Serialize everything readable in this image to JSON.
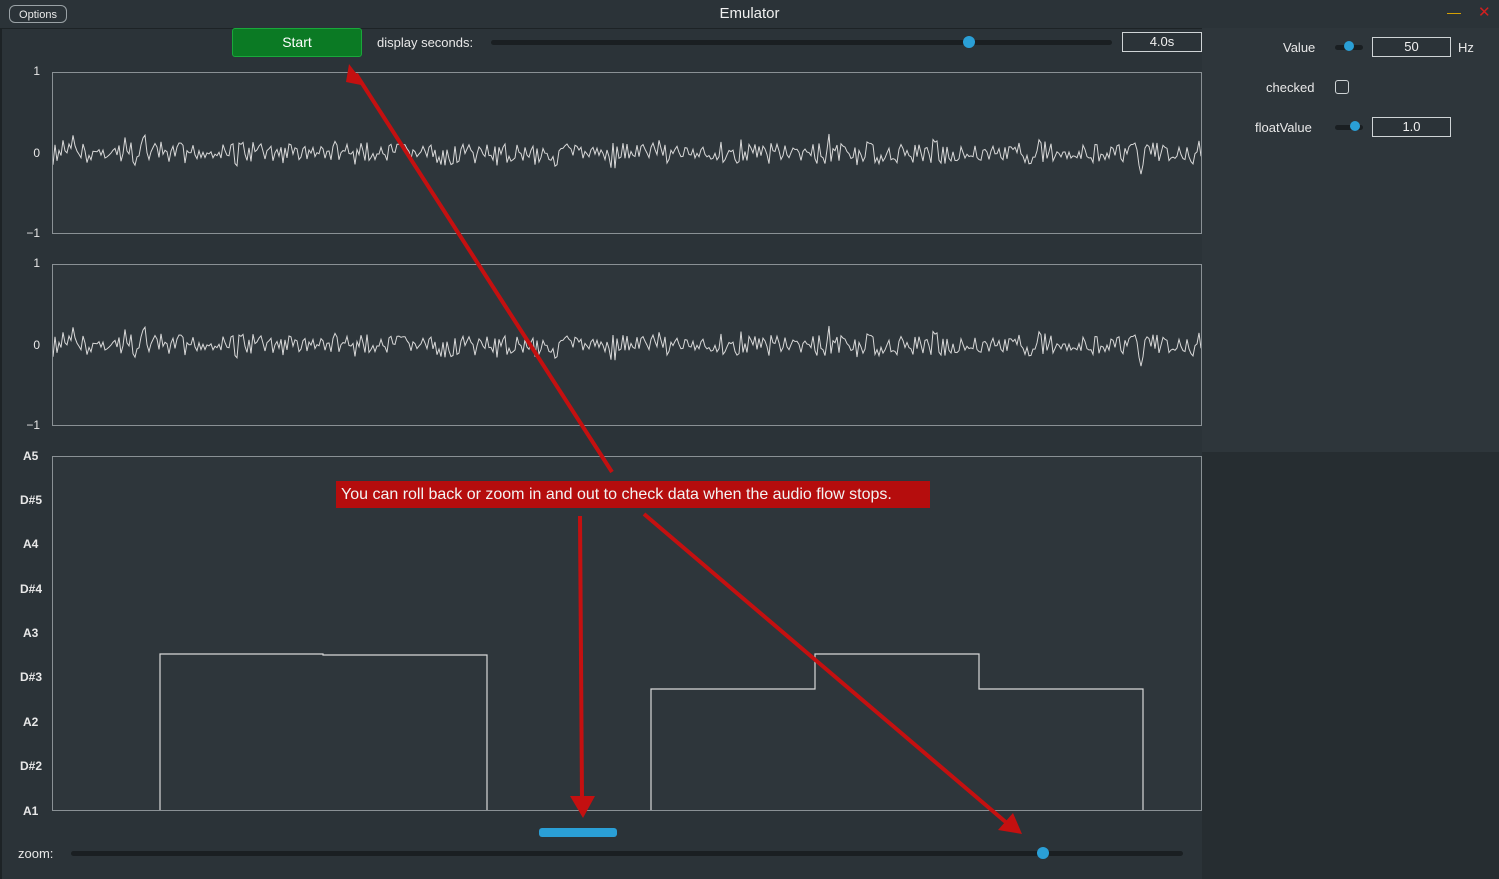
{
  "window": {
    "title": "Emulator",
    "options_label": "Options"
  },
  "toolbar": {
    "start_label": "Start",
    "display_seconds_label": "display seconds:",
    "display_seconds_value": "4.0s",
    "display_seconds_slider_fraction": 0.77
  },
  "right_panel": {
    "value_label": "Value",
    "value": "50",
    "value_unit": "Hz",
    "value_slider_fraction": 0.5,
    "checked_label": "checked",
    "checked": false,
    "float_label": "floatValue",
    "float_value": "1.0",
    "float_slider_fraction": 0.7
  },
  "waveform_ticks": {
    "top": "1",
    "mid": "0",
    "bottom": "−1"
  },
  "notes": [
    "A5",
    "D#5",
    "A4",
    "D#4",
    "A3",
    "D#3",
    "A2",
    "D#2",
    "A1"
  ],
  "callout_text": "You can roll back or zoom in and out to check data when the audio flow stops.",
  "zoom": {
    "label": "zoom:",
    "slider_fraction": 0.874
  },
  "colors": {
    "accent": "#2a9fd6",
    "start": "#0b7a24",
    "callout": "#b50d0d"
  }
}
